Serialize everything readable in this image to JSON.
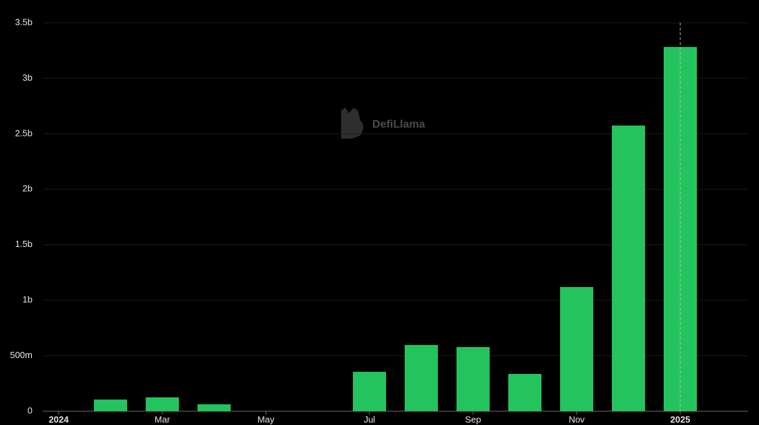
{
  "chart_data": {
    "type": "bar",
    "watermark": "DefiLlama",
    "categories": [
      "2024",
      null,
      "Mar",
      null,
      "May",
      null,
      "Jul",
      null,
      "Sep",
      null,
      "Nov",
      null,
      "2025"
    ],
    "values": [
      null,
      105000000,
      125000000,
      62000000,
      null,
      null,
      355000000,
      597000000,
      578000000,
      336000000,
      1119000000,
      2574000000,
      3282000000
    ],
    "color": "#23c45e",
    "ylim": [
      0,
      3500000000
    ],
    "yticks": [
      0,
      {
        "value": 500000000,
        "label": "500m"
      },
      {
        "value": 1000000000,
        "label": "1b"
      },
      {
        "value": 1500000000,
        "label": "1.5b"
      },
      {
        "value": 2000000000,
        "label": "2b"
      },
      {
        "value": 2500000000,
        "label": "2.5b"
      },
      {
        "value": 3000000000,
        "label": "3b"
      },
      {
        "value": 3500000000,
        "label": "3.5b"
      }
    ],
    "grid": true
  }
}
